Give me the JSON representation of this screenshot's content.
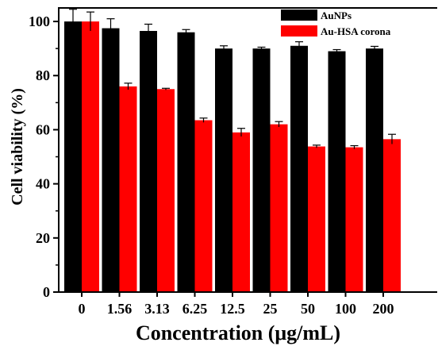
{
  "chart_data": {
    "type": "bar",
    "xlabel": "Concentration (μg/mL)",
    "ylabel": "Cell viability (%)",
    "categories": [
      "0",
      "1.56",
      "3.13",
      "6.25",
      "12.5",
      "25",
      "50",
      "100",
      "200"
    ],
    "series": [
      {
        "name": "AuNPs",
        "color": "#000000",
        "values": [
          100,
          97.5,
          96.5,
          96,
          90,
          90,
          91,
          89,
          90
        ],
        "errors": [
          4.5,
          3.5,
          2.5,
          1.0,
          1.0,
          0.5,
          1.5,
          0.6,
          0.8
        ]
      },
      {
        "name": "Au-HSA corona",
        "color": "#ff0000",
        "values": [
          100,
          76,
          75,
          63.5,
          59,
          62,
          53.8,
          53.5,
          56.5
        ],
        "errors": [
          3.5,
          1.2,
          0.3,
          0.8,
          1.5,
          1.0,
          0.5,
          0.6,
          1.8
        ]
      }
    ],
    "ylim": [
      0,
      105
    ],
    "yticks": [
      0,
      20,
      40,
      60,
      80,
      100
    ],
    "legend_position": "top-right",
    "grid": false
  }
}
